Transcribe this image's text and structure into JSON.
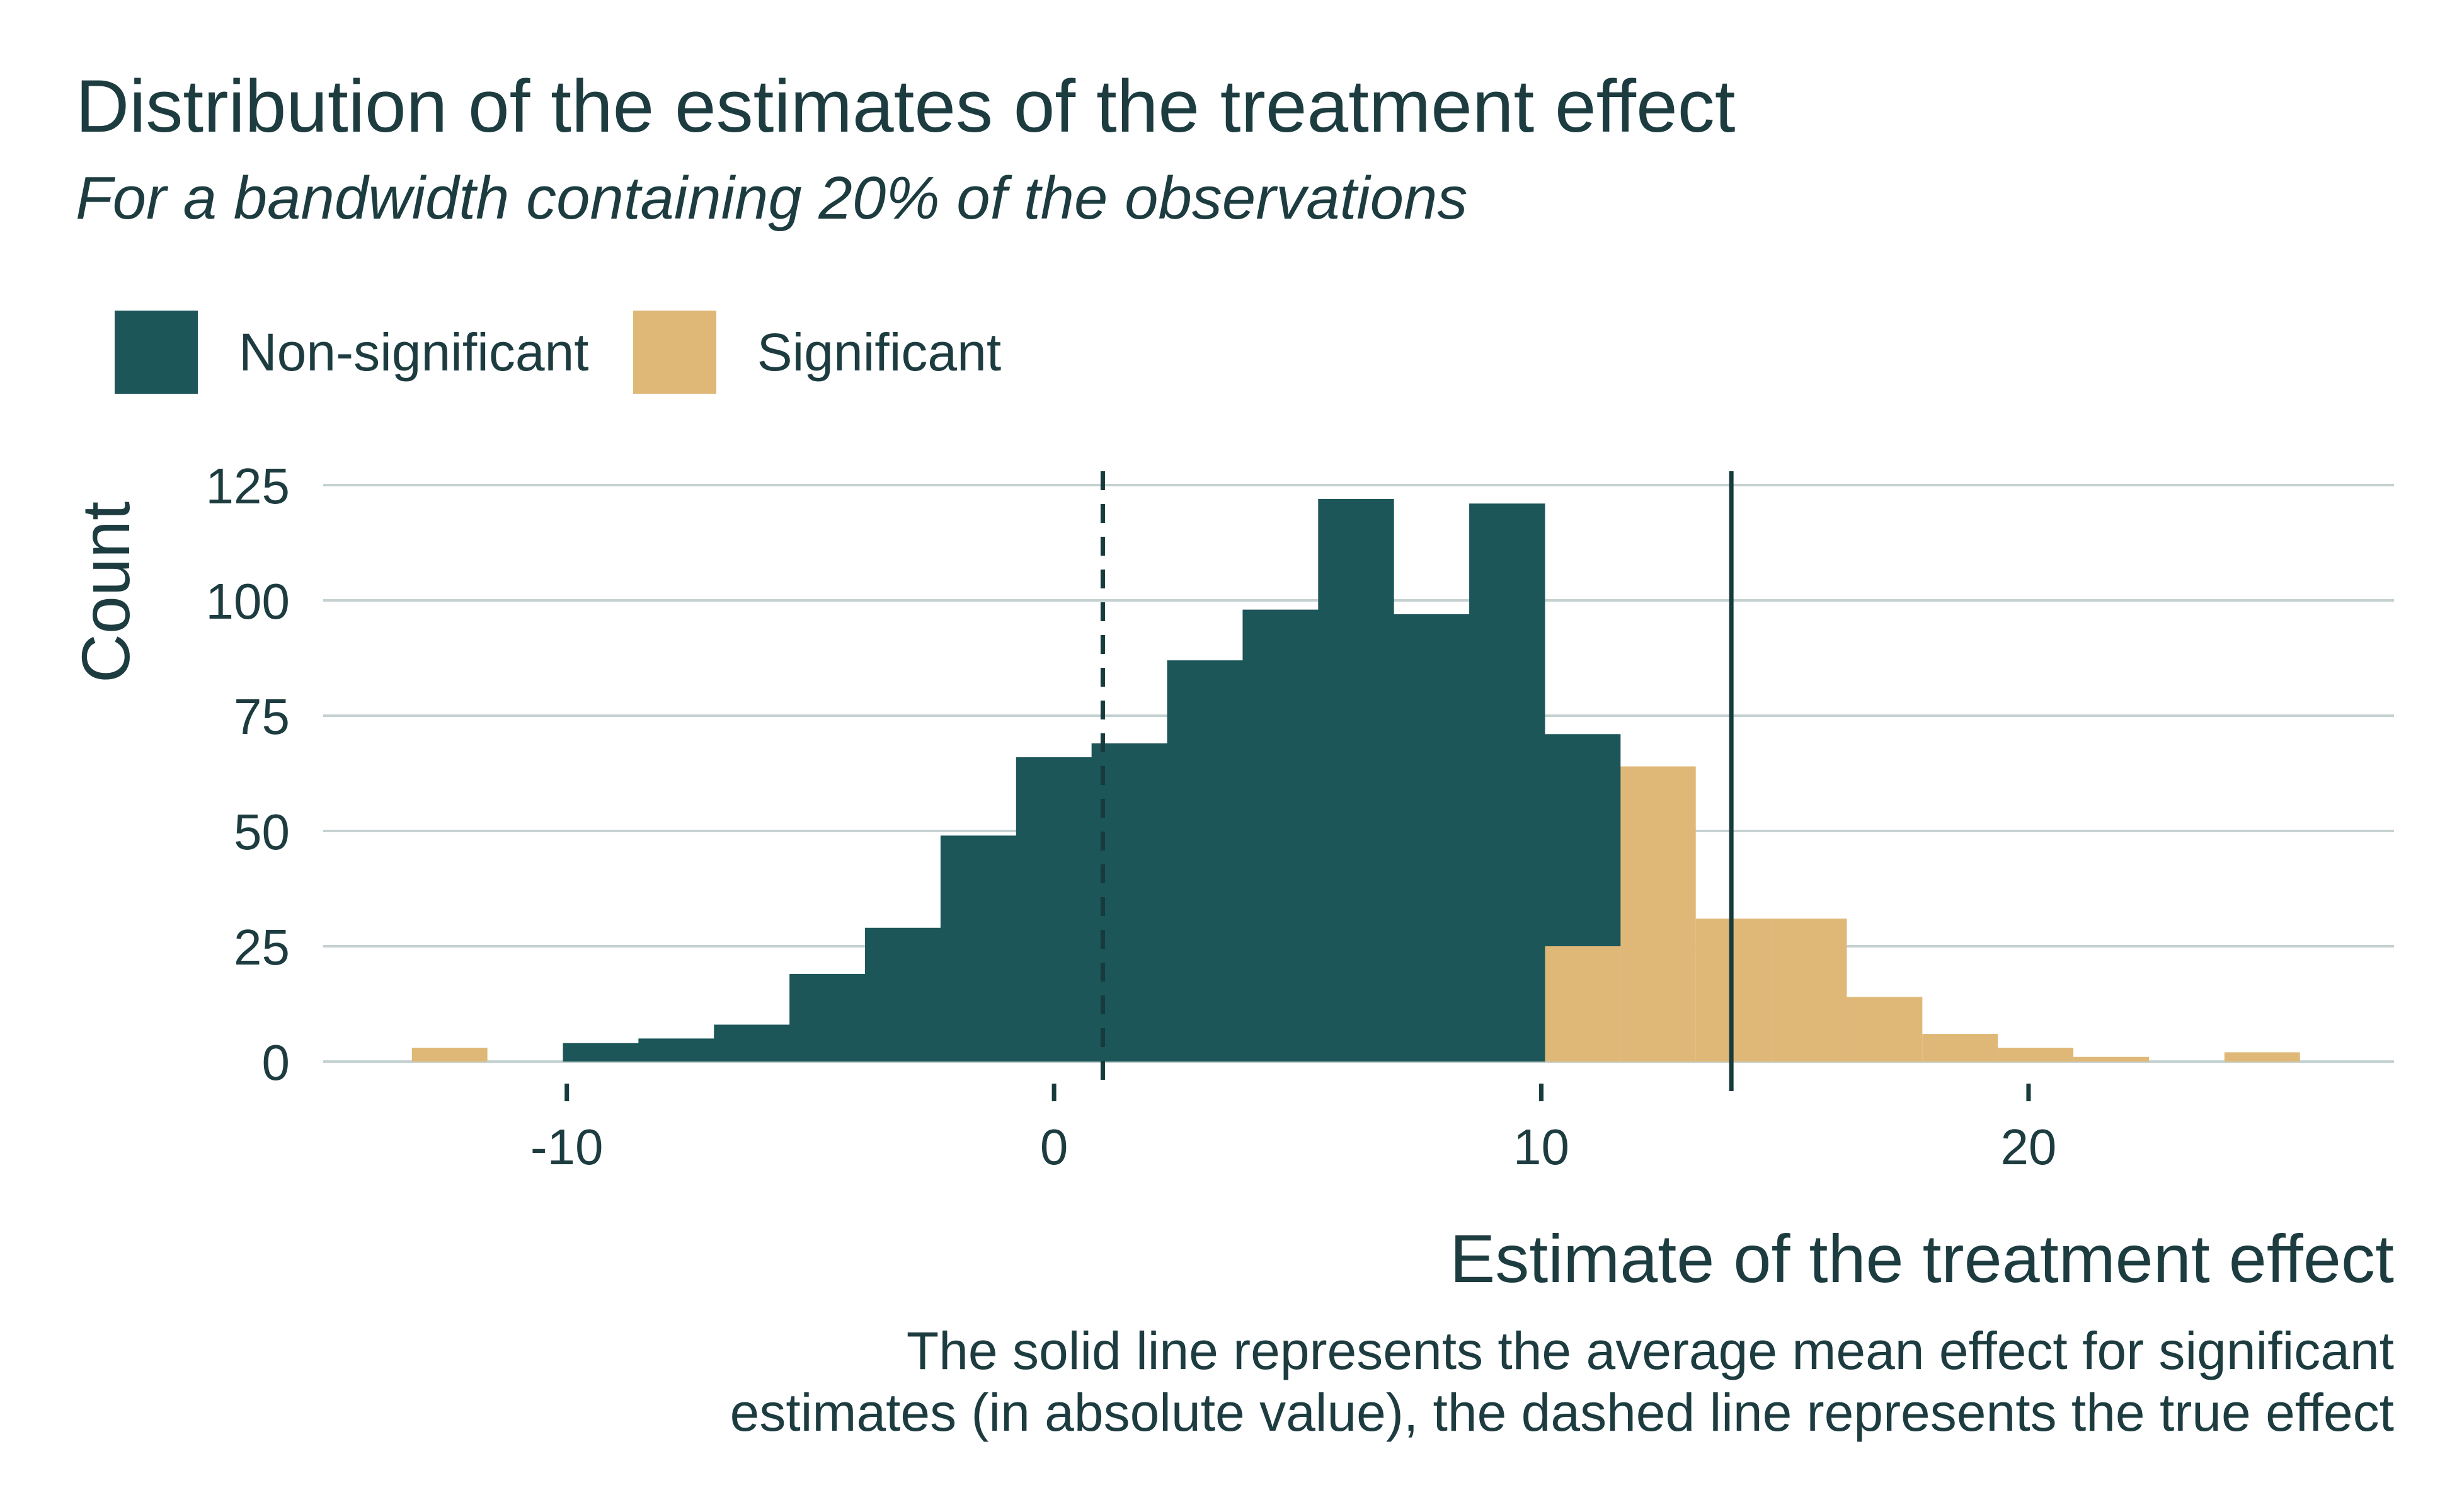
{
  "title": "Distribution of the estimates of the treatment effect",
  "subtitle": "For a bandwidth containing 20% of the observations",
  "caption": {
    "line1": "The solid line represents the average mean effect for significant",
    "line2": "estimates (in absolute value), the dashed line represents the true effect"
  },
  "colors": {
    "non_significant": "#1c5659",
    "significant": "#dfb877",
    "text": "#1d3c40",
    "grid": "#c5d1d1"
  },
  "chart_data": {
    "type": "bar",
    "histogram": true,
    "xlabel": "Estimate of the treatment effect",
    "ylabel": "Count",
    "xlim": [
      -15,
      27.5
    ],
    "ylim": [
      0,
      125
    ],
    "x_ticks": [
      -10,
      0,
      10,
      20
    ],
    "y_ticks": [
      0,
      25,
      50,
      75,
      100,
      125
    ],
    "grid": "horizontal",
    "legend_position": "top-left",
    "bin_width": 1.55,
    "series": [
      {
        "name": "Non-significant",
        "color": "#1c5659",
        "bins": [
          {
            "x0": -10.08,
            "x1": -8.53,
            "count": 4
          },
          {
            "x0": -8.53,
            "x1": -6.98,
            "count": 5
          },
          {
            "x0": -6.98,
            "x1": -5.43,
            "count": 8
          },
          {
            "x0": -5.43,
            "x1": -3.88,
            "count": 19
          },
          {
            "x0": -3.88,
            "x1": -2.33,
            "count": 29
          },
          {
            "x0": -2.33,
            "x1": -0.78,
            "count": 49
          },
          {
            "x0": -0.78,
            "x1": 0.77,
            "count": 66
          },
          {
            "x0": 0.77,
            "x1": 2.32,
            "count": 69
          },
          {
            "x0": 2.32,
            "x1": 3.87,
            "count": 87
          },
          {
            "x0": 3.87,
            "x1": 5.42,
            "count": 98
          },
          {
            "x0": 5.42,
            "x1": 6.97,
            "count": 122
          },
          {
            "x0": 6.97,
            "x1": 8.52,
            "count": 97
          },
          {
            "x0": 8.52,
            "x1": 10.07,
            "count": 121
          },
          {
            "x0": 10.07,
            "x1": 11.62,
            "count": 71
          }
        ]
      },
      {
        "name": "Significant",
        "color": "#dfb877",
        "bins": [
          {
            "x0": -13.18,
            "x1": -11.63,
            "count": 3
          },
          {
            "x0": 10.07,
            "x1": 11.62,
            "count": 25
          },
          {
            "x0": 11.62,
            "x1": 13.17,
            "count": 64
          },
          {
            "x0": 13.17,
            "x1": 14.72,
            "count": 31
          },
          {
            "x0": 14.72,
            "x1": 16.27,
            "count": 31
          },
          {
            "x0": 16.27,
            "x1": 17.82,
            "count": 14
          },
          {
            "x0": 17.82,
            "x1": 19.37,
            "count": 6
          },
          {
            "x0": 19.37,
            "x1": 20.92,
            "count": 3
          },
          {
            "x0": 20.92,
            "x1": 22.47,
            "count": 1
          },
          {
            "x0": 24.02,
            "x1": 25.57,
            "count": 2
          }
        ],
        "stacked_on_bins": [
          {
            "x0": 10.07,
            "x1": 11.62,
            "base": 0,
            "note_hidden": true
          }
        ]
      }
    ],
    "reference_lines": [
      {
        "style": "dashed",
        "x": 1.0
      },
      {
        "style": "solid",
        "x": 13.9
      }
    ]
  }
}
